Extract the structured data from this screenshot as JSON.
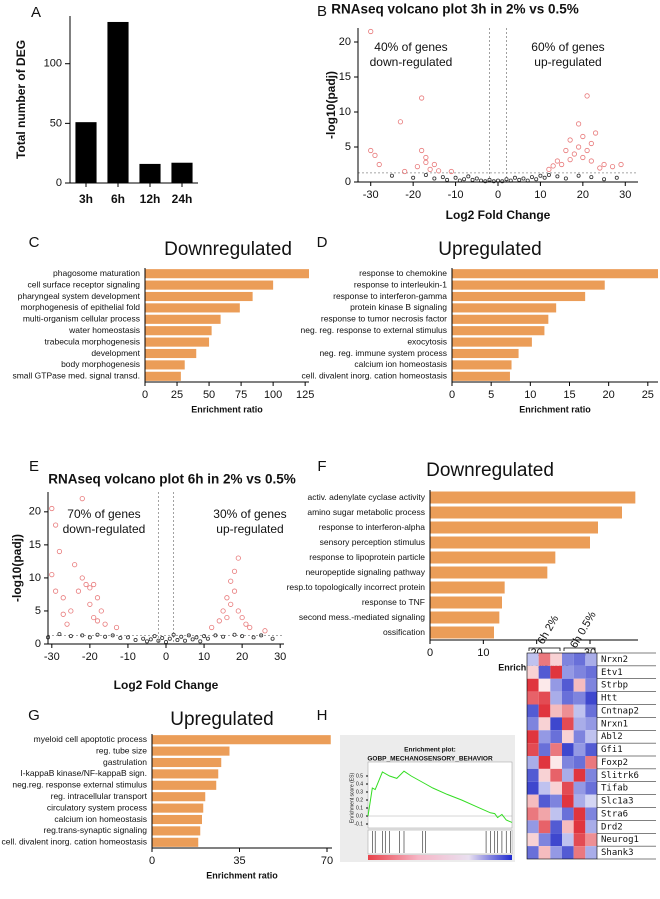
{
  "chart_data": [
    {
      "panel": "A",
      "type": "bar",
      "ylabel": "Total number of DEG",
      "categories": [
        "3h",
        "6h",
        "12h",
        "24h"
      ],
      "values": [
        51,
        135,
        16,
        17
      ],
      "color": "#000000",
      "ylim": [
        0,
        140
      ],
      "yticks": [
        0,
        50,
        100
      ]
    },
    {
      "panel": "B",
      "type": "scatter",
      "title": "RNAseq volcano plot 3h in 2% vs 0.5%",
      "xlabel": "Log2 Fold Change",
      "ylabel": "-log10(padj)",
      "annotations": [
        [
          "40% of genes",
          "down-regulated"
        ],
        [
          "60% of genes",
          "up-regulated"
        ]
      ],
      "xlim": [
        -33,
        33
      ],
      "ylim": [
        0,
        22
      ],
      "xticks": [
        -30,
        -20,
        -10,
        0,
        10,
        20,
        30
      ],
      "yticks": [
        0,
        5,
        10,
        15,
        20
      ],
      "vlines": [
        -2,
        2
      ],
      "hline": 1.3,
      "series": [
        {
          "color": "#e8797a",
          "x": [
            -30,
            -30,
            -29,
            -28,
            -23,
            -22,
            -19,
            -18,
            -18,
            -17,
            -17,
            -16,
            -15,
            -14,
            -11,
            12,
            13,
            14,
            15,
            16,
            17,
            17,
            18,
            19,
            19,
            20,
            20,
            21,
            21,
            22,
            22,
            23,
            24,
            25,
            27,
            29
          ],
          "values": [
            21.5,
            4.5,
            3.8,
            2.5,
            8.6,
            1.5,
            2.2,
            12,
            4.5,
            3.5,
            2.8,
            1.8,
            2.5,
            1.6,
            1.5,
            1.8,
            2.3,
            3,
            2.5,
            4.5,
            3.2,
            6,
            4,
            8.3,
            5,
            6.5,
            3.5,
            12.3,
            4.5,
            5.5,
            3,
            7,
            2,
            2.5,
            2.2,
            2.5
          ]
        },
        {
          "color": "#333333",
          "x": [
            -25,
            -20,
            -17,
            -15,
            -13,
            -12,
            -10,
            -9,
            -8,
            -7,
            -6,
            -5,
            -4,
            -3,
            -2,
            -1,
            0,
            1,
            2,
            3,
            4,
            5,
            6,
            7,
            8,
            9,
            10,
            11,
            12,
            14,
            16,
            19,
            22,
            25,
            28
          ],
          "values": [
            0.9,
            0.6,
            1,
            0.5,
            0.7,
            0.3,
            0.6,
            0.2,
            0.4,
            0.8,
            0.3,
            0.5,
            0.2,
            0.1,
            0.3,
            0.1,
            0.2,
            0.1,
            0.4,
            0.2,
            0.6,
            0.3,
            0.5,
            0.2,
            0.7,
            0.4,
            0.9,
            0.6,
            1,
            0.8,
            0.5,
            0.9,
            0.7,
            0.4,
            0.6
          ]
        }
      ]
    },
    {
      "panel": "C",
      "type": "hbar",
      "title": "Downregulated",
      "xlabel": "Enrichment ratio",
      "color": "#eb9d58",
      "categories": [
        "phagosome maturation",
        "cell surface receptor signaling",
        "pharyngeal system development",
        "morphogenesis of epithelial fold",
        "multi-organism cellular process",
        "water homeostasis",
        "trabecula morphogenesis",
        "development",
        "body morphogenesis",
        "small GTPase med. signal transd."
      ],
      "values": [
        128,
        100,
        84,
        74,
        59,
        52,
        50,
        40,
        31,
        28
      ],
      "xlim": [
        0,
        128
      ],
      "xticks": [
        0,
        25,
        50,
        75,
        100,
        125
      ]
    },
    {
      "panel": "D",
      "type": "hbar",
      "title": "Upregulated",
      "xlabel": "Enrichment ratio",
      "color": "#eb9d58",
      "categories": [
        "response to chemokine",
        "response to interleukin-1",
        "response to interferon-gamma",
        "protein kinase B signaling",
        "response to tumor necrosis factor",
        "neg. reg. response to external stimulus",
        "exocytosis",
        "neg. reg. immune system process",
        "calcium ion homeostasis",
        "cell. divalent inorg. cation homeostasis"
      ],
      "values": [
        26.3,
        19.5,
        17,
        13.3,
        12.3,
        11.8,
        10.2,
        8.5,
        7.6,
        7.4
      ],
      "xlim": [
        0,
        26.3
      ],
      "xticks": [
        0,
        5,
        10,
        15,
        20,
        25
      ]
    },
    {
      "panel": "E",
      "type": "scatter",
      "title": "RNAseq volcano plot 6h in 2% vs 0.5%",
      "xlabel": "Log2 Fold Change",
      "ylabel": "-log10(padj)",
      "annotations": [
        [
          "70% of genes",
          "down-regulated"
        ],
        [
          "30% of genes",
          "up-regulated"
        ]
      ],
      "xlim": [
        -31,
        31
      ],
      "ylim": [
        0,
        23
      ],
      "xticks": [
        -30,
        -20,
        -10,
        0,
        10,
        20,
        30
      ],
      "yticks": [
        0,
        5,
        10,
        15,
        20
      ],
      "vlines": [
        -2,
        2
      ],
      "hline": 1.3,
      "series": [
        {
          "color": "#e8797a",
          "x": [
            -30,
            -30,
            -29,
            -29,
            -28,
            -27,
            -26,
            -24,
            -23,
            -22,
            -22,
            -21,
            -20,
            -20,
            -19,
            -19,
            -18,
            -18,
            -17,
            -16,
            -13,
            -27,
            -25,
            12,
            14,
            15,
            16,
            16,
            17,
            17,
            18,
            18,
            19,
            19,
            20,
            21,
            22,
            26
          ],
          "values": [
            20.5,
            10.5,
            18,
            8,
            14,
            4.5,
            3,
            12,
            8,
            22,
            10,
            9,
            8.5,
            6,
            9,
            4,
            7,
            3.5,
            5,
            3,
            2.5,
            7,
            5,
            2.5,
            3.5,
            5,
            7,
            4,
            9.5,
            6,
            11,
            8,
            13,
            5,
            4,
            3,
            2.5,
            2
          ]
        },
        {
          "color": "#333333",
          "x": [
            -31,
            -28,
            -25,
            -22,
            -20,
            -18,
            -16,
            -14,
            -12,
            -10,
            -8,
            -6,
            -5,
            -4,
            -3,
            -2,
            -1,
            0,
            1,
            2,
            3,
            4,
            5,
            6,
            7,
            8,
            9,
            10,
            11,
            13,
            15,
            18,
            20,
            23,
            25,
            28
          ],
          "values": [
            1,
            1.5,
            1.2,
            1.3,
            1,
            1.4,
            1.1,
            1.3,
            0.9,
            1,
            0.6,
            0.8,
            0.4,
            0.7,
            1.2,
            0.5,
            0.9,
            0.3,
            0.8,
            1.4,
            0.6,
            1.1,
            0.5,
            1.3,
            0.7,
            1,
            0.4,
            1.2,
            0.8,
            1.3,
            1.1,
            1.4,
            1.2,
            1,
            1.3,
            0.8
          ]
        }
      ]
    },
    {
      "panel": "F",
      "type": "hbar",
      "title": "Downregulated",
      "xlabel": "Enrichment ratio",
      "color": "#eb9d58",
      "categories": [
        "activ. adenylate cyclase activity",
        "amino sugar metabolic process",
        "response to interferon-alpha",
        "sensory perception stimulus",
        "response to lipoprotein particle",
        "neuropeptide signaling pathway",
        "resp.to topologically incorrect protein",
        "response to TNF",
        "second mess.-mediated signaling",
        "ossification"
      ],
      "values": [
        38.5,
        36,
        31.5,
        30,
        23.5,
        22,
        14,
        13.5,
        13,
        12
      ],
      "xlim": [
        0,
        39
      ],
      "xticks": [
        0,
        10,
        20,
        30
      ]
    },
    {
      "panel": "G",
      "type": "hbar",
      "title": "Upregulated",
      "xlabel": "Enrichment ratio",
      "color": "#eb9d58",
      "categories": [
        "myeloid cell apoptotic process",
        "reg. tube size",
        "gastrulation",
        "I-kappaB kinase/NF-kappaB sign.",
        "neg.reg. response external stimulus",
        "reg. intracellular transport",
        "circulatory system process",
        "calcium ion homeostasis",
        "reg.trans-synaptic signaling",
        "cell. divalent inorg. cation homeostasis"
      ],
      "values": [
        71.5,
        31,
        27.7,
        26.5,
        25.7,
        21.3,
        20.5,
        20,
        19.3,
        18.5
      ],
      "xlim": [
        0,
        72
      ],
      "xticks": [
        0,
        35,
        70
      ]
    },
    {
      "panel": "H",
      "type": "line",
      "title": [
        "Enrichment plot:",
        "GOBP_MECHANOSENSORY_BEHAVIOR"
      ],
      "ylabel": "Enrichment score (ES)",
      "color": "#33dd22",
      "x": [
        0,
        3,
        5,
        10,
        15,
        20,
        25,
        30,
        35,
        40,
        45,
        55,
        65,
        75,
        85,
        88,
        90,
        93,
        96,
        100
      ],
      "values": [
        0,
        0.35,
        0.33,
        0.55,
        0.5,
        0.47,
        0.56,
        0.5,
        0.45,
        0.4,
        0.35,
        0.27,
        0.2,
        0.12,
        0.04,
        0.03,
        -0.02,
        0.02,
        -0.05,
        -0.08
      ],
      "hits": [
        3,
        5,
        10,
        12,
        15,
        22,
        25,
        38,
        40,
        82,
        85,
        88,
        90,
        93,
        96,
        99
      ],
      "xlim": [
        0,
        100
      ],
      "ylim": [
        -0.15,
        0.6
      ],
      "yticks": [
        0.5,
        0.4,
        0.3,
        0.2,
        0.1,
        {
          "value": 0,
          "label": "0.0"
        },
        -0.1
      ]
    },
    {
      "type": "heatmap",
      "column_labels": [
        "6h 2%",
        "6h 0.5%"
      ],
      "rows": [
        "Nrxn2",
        "Etv1",
        "Strbp",
        "Htt",
        "Cntnap2",
        "Nrxn1",
        "Abl2",
        "Gfi1",
        "Foxp2",
        "Slitrk6",
        "Tifab",
        "Slc1a3",
        "Stra6",
        "Drd2",
        "Neurog1",
        "Shank3"
      ],
      "values": [
        [
          -0.3,
          0.6,
          0.2,
          -0.6,
          -0.7,
          -0.4
        ],
        [
          0.2,
          -0.8,
          0.9,
          -0.5,
          -0.6,
          -0.7
        ],
        [
          0.9,
          0.1,
          -0.5,
          -0.8,
          0.3,
          -0.6
        ],
        [
          0.7,
          0.8,
          -0.4,
          -0.7,
          -0.6,
          -0.9
        ],
        [
          -0.8,
          0.9,
          0.3,
          0.5,
          -0.3,
          -0.7
        ],
        [
          -0.6,
          0.2,
          -0.9,
          0.8,
          -0.4,
          -0.5
        ],
        [
          0.9,
          -0.5,
          -0.7,
          0.2,
          -0.6,
          -0.3
        ],
        [
          0.8,
          -0.7,
          0.6,
          -0.9,
          -0.5,
          -0.8
        ],
        [
          -0.4,
          0.9,
          0.1,
          -0.6,
          -0.7,
          0.6
        ],
        [
          -0.8,
          0.2,
          0.7,
          -0.4,
          0.9,
          -0.6
        ],
        [
          -0.9,
          -0.3,
          0.2,
          0.8,
          -0.5,
          -0.7
        ],
        [
          0.3,
          -0.8,
          -0.6,
          0.9,
          -0.4,
          -0.2
        ],
        [
          0.6,
          0.4,
          -0.3,
          -0.7,
          0.9,
          -0.6
        ],
        [
          -0.5,
          0.7,
          -0.8,
          0.3,
          0.9,
          -0.4
        ],
        [
          0.2,
          -0.6,
          -0.9,
          -0.3,
          0.8,
          0.5
        ],
        [
          -0.7,
          0.3,
          -0.5,
          -0.8,
          0.6,
          -0.4
        ]
      ]
    }
  ]
}
